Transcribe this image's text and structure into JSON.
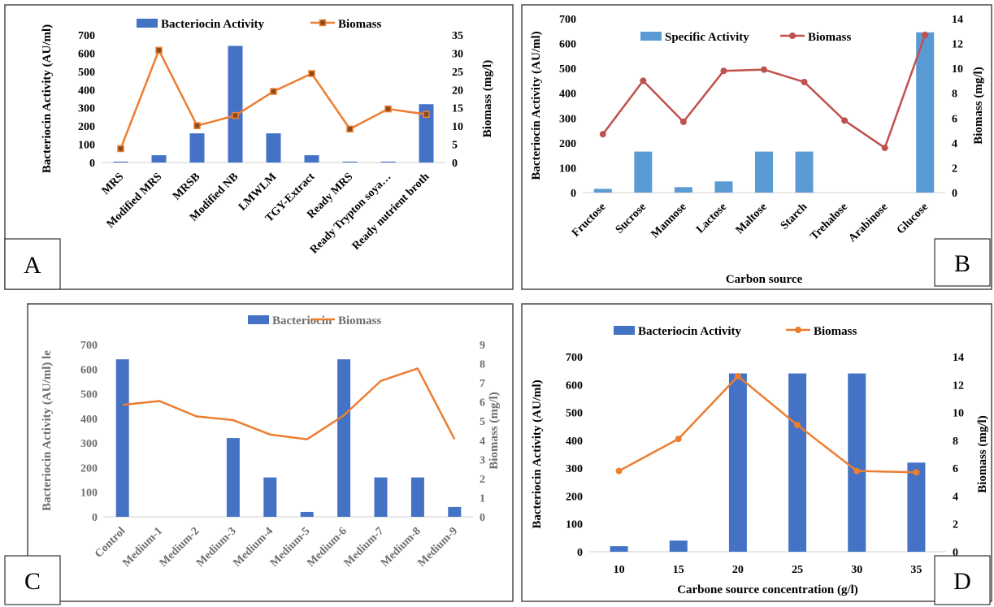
{
  "chart_data": [
    {
      "panel": "A",
      "type": "bar",
      "categories": [
        "MRS",
        "Modified  MRS",
        "MRSB",
        "Modified NB",
        "LMWLM",
        "TGY-Extract",
        "Ready MRS",
        "Ready Trypton soya…",
        "Ready  nutrient broth"
      ],
      "series": [
        {
          "name": "Bacteriocin Activity",
          "type": "bar",
          "axis": "left",
          "color": "#4472C4",
          "values": [
            5,
            40,
            160,
            640,
            160,
            40,
            5,
            5,
            320
          ]
        },
        {
          "name": "Biomass",
          "type": "line",
          "axis": "right",
          "color": "#ED7D31",
          "marker": "square",
          "values": [
            3.8,
            30.8,
            10.1,
            12.9,
            19.5,
            24.4,
            9.2,
            14.7,
            13.2
          ]
        }
      ],
      "ylabel": "Bacteriocin Activity (AU/ml)",
      "y2label": "Biomass  (mg/l)",
      "xlabel": "",
      "ylim": [
        0,
        700
      ],
      "y2lim": [
        0,
        35
      ],
      "yticks": [
        "0",
        "100",
        "200",
        "300",
        "400",
        "500",
        "600",
        "700"
      ],
      "y2ticks": [
        "0",
        "5",
        "10",
        "15",
        "20",
        "25",
        "30",
        "35"
      ],
      "legend": "top",
      "letter": "A"
    },
    {
      "panel": "B",
      "type": "bar",
      "categories": [
        "Fructose",
        "Sucrose",
        "Mannose",
        "Lactose",
        "Maltose",
        "Starch",
        "Trehalose",
        "Arabinose",
        "Glucose"
      ],
      "series": [
        {
          "name": "Specific Activity",
          "type": "bar",
          "axis": "left",
          "color": "#5B9BD5",
          "values": [
            15,
            165,
            22,
            45,
            165,
            165,
            0,
            0,
            645
          ]
        },
        {
          "name": "Biomass",
          "type": "line",
          "axis": "right",
          "color": "#C0504D",
          "marker": "circle",
          "values": [
            4.7,
            9.0,
            5.7,
            9.8,
            9.9,
            8.9,
            5.8,
            3.6,
            12.7
          ]
        }
      ],
      "ylabel": "Bacteriocin Activity (AU/ml)",
      "y2label": "Biomass (mg/l)",
      "xlabel": "Carbon source",
      "ylim": [
        0,
        700
      ],
      "y2lim": [
        0,
        14
      ],
      "yticks": [
        "0",
        "100",
        "200",
        "300",
        "400",
        "500",
        "600",
        "700"
      ],
      "y2ticks": [
        "0",
        "2",
        "4",
        "6",
        "8",
        "10",
        "12",
        "14"
      ],
      "legend": "top",
      "letter": "B"
    },
    {
      "panel": "C",
      "type": "bar",
      "categories": [
        "Control",
        "Medium-1",
        "Medium-2",
        "Medium-3",
        "Medium-4",
        "Medium-5",
        "Medium-6",
        "Medium-7",
        "Medium-8",
        "Medium-9"
      ],
      "series": [
        {
          "name": "Bacteriocin",
          "type": "bar",
          "axis": "left",
          "color": "#4472C4",
          "values": [
            640,
            0,
            0,
            320,
            160,
            20,
            640,
            160,
            160,
            40
          ]
        },
        {
          "name": "Biomass",
          "type": "line",
          "axis": "right",
          "color": "#ED7D31",
          "marker": "none",
          "values": [
            5.85,
            6.05,
            5.25,
            5.05,
            4.3,
            4.05,
            5.3,
            7.1,
            7.75,
            4.05
          ]
        }
      ],
      "ylabel": "Bacteriocin Activity (AU/ml) le",
      "y2label": "Biomass  (mg/l)",
      "xlabel": "",
      "ylim": [
        0,
        700
      ],
      "y2lim": [
        0,
        9
      ],
      "yticks": [
        "0",
        "100",
        "200",
        "300",
        "400",
        "500",
        "600",
        "700"
      ],
      "y2ticks": [
        "0",
        "1",
        "2",
        "3",
        "4",
        "5",
        "6",
        "7",
        "8",
        "9"
      ],
      "legend": "top",
      "letter": "C"
    },
    {
      "panel": "D",
      "type": "bar",
      "categories": [
        "10",
        "15",
        "20",
        "25",
        "30",
        "35"
      ],
      "series": [
        {
          "name": "Bacteriocin Activity",
          "type": "bar",
          "axis": "left",
          "color": "#4472C4",
          "values": [
            20,
            40,
            640,
            640,
            640,
            320
          ]
        },
        {
          "name": "Biomass",
          "type": "line",
          "axis": "right",
          "color": "#ED7D31",
          "marker": "circle",
          "values": [
            5.8,
            8.1,
            12.6,
            9.1,
            5.8,
            5.7
          ]
        }
      ],
      "ylabel": "Bacteriocin Activity (AU/ml)",
      "y2label": "Biomass (mg/l)",
      "xlabel": "Carbone source concentration (g/l)",
      "ylim": [
        0,
        700
      ],
      "y2lim": [
        0,
        14
      ],
      "yticks": [
        "0",
        "100",
        "200",
        "300",
        "400",
        "500",
        "600",
        "700"
      ],
      "y2ticks": [
        "0",
        "2",
        "4",
        "6",
        "8",
        "10",
        "12",
        "14"
      ],
      "legend": "top",
      "letter": "D"
    }
  ]
}
